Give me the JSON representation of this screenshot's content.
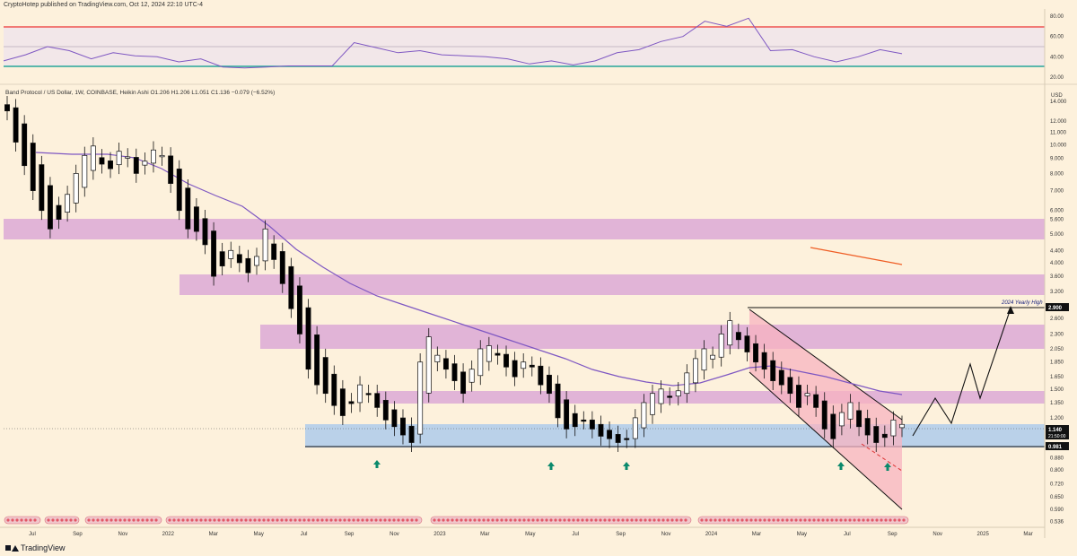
{
  "header": {
    "publish_line": "CryptoHotep published on TradingView.com, Oct 12, 2024 22:10 UTC-4",
    "symbol_line": "Band Protocol / US Dollar, 1W, COINBASE, Heikin Ashi  O1.206  H1.206  L1.051  C1.136  −0.079 (−6.52%)",
    "brand": "TradingView"
  },
  "colors": {
    "background": "#fdf1dc",
    "bull": "#ffffff",
    "bear": "#000000",
    "ma": "#7e57c2",
    "zone": "#d9a5d6",
    "support_zone": "#aecbeb",
    "channel_fill": "#f7b3c0",
    "arrow": "#0b8a6c",
    "rsi_upper": "#ef5350",
    "rsi_lower": "#26a69a",
    "rsi_line": "#7e57c2",
    "red_line": "#ef5d24"
  },
  "chart_data": [
    {
      "type": "line",
      "title": "",
      "pane": "RSI",
      "ylim": [
        20,
        80
      ],
      "yticks": [
        "80.00",
        "60.00",
        "40.00",
        "20.00"
      ],
      "levels": [
        70,
        50,
        30
      ],
      "x": [
        "2021-07",
        "2021-08",
        "2021-09",
        "2021-10",
        "2021-11",
        "2021-12",
        "2022-01",
        "2022-02",
        "2022-03",
        "2022-04",
        "2022-05",
        "2022-06",
        "2022-07",
        "2022-08",
        "2022-09",
        "2022-10",
        "2022-10-24",
        "2022-11",
        "2022-12",
        "2023-01",
        "2023-02",
        "2023-03",
        "2023-04",
        "2023-05",
        "2023-06",
        "2023-07",
        "2023-08",
        "2023-09",
        "2023-10",
        "2023-11",
        "2023-12",
        "2024-01",
        "2024-02",
        "2024-03",
        "2024-03-20",
        "2024-04",
        "2024-05",
        "2024-06",
        "2024-07",
        "2024-08",
        "2024-09",
        "2024-10"
      ],
      "values": [
        36,
        42,
        50,
        46,
        38,
        44,
        41,
        40,
        35,
        38,
        30,
        29,
        30,
        31,
        31,
        31,
        54,
        49,
        44,
        46,
        42,
        41,
        40,
        38,
        33,
        36,
        32,
        36,
        44,
        47,
        55,
        60,
        75,
        70,
        78,
        46,
        47,
        40,
        35,
        40,
        47,
        43
      ]
    },
    {
      "type": "candlestick",
      "title": "",
      "pane": "price",
      "scale": "log",
      "ylim": [
        0.52,
        14.5
      ],
      "yticks": [
        "14.000",
        "12.000",
        "11.000",
        "10.000",
        "9.000",
        "8.000",
        "7.000",
        "6.000",
        "5.600",
        "5.000",
        "4.400",
        "4.000",
        "3.600",
        "3.200",
        "2.900",
        "2.600",
        "2.300",
        "2.050",
        "1.850",
        "1.650",
        "1.500",
        "1.350",
        "1.200",
        "1.140",
        "0.981",
        "0.880",
        "0.800",
        "0.720",
        "0.650",
        "0.590",
        "0.536"
      ],
      "axis_unit": "USD",
      "xticks": [
        "Jul",
        "Sep",
        "Nov",
        "2022",
        "Mar",
        "May",
        "Jul",
        "Sep",
        "Nov",
        "2023",
        "Mar",
        "May",
        "Jul",
        "Sep",
        "Nov",
        "2024",
        "Mar",
        "May",
        "Jul",
        "Sep",
        "Nov",
        "2025",
        "Mar"
      ],
      "last_price": "1.140",
      "countdown": "21:50:00",
      "support_label": "0.981",
      "yearly_high_label": "2.900",
      "annotation": "2024 Yearly High",
      "candles_close": [
        13.0,
        10.2,
        8.5,
        7.0,
        6.0,
        5.2,
        5.6,
        6.8,
        8.0,
        9.2,
        9.9,
        8.6,
        8.3,
        9.5,
        9.1,
        8.0,
        8.8,
        9.6,
        9.2,
        7.4,
        6.0,
        5.2,
        5.1,
        4.6,
        3.6,
        3.9,
        4.4,
        4.0,
        3.7,
        4.2,
        5.2,
        4.1,
        3.4,
        2.8,
        2.3,
        1.75,
        1.55,
        1.45,
        1.32,
        1.22,
        1.34,
        1.55,
        1.45,
        1.3,
        1.18,
        1.12,
        1.05,
        0.99,
        1.85,
        2.25,
        1.95,
        1.75,
        1.6,
        1.45,
        1.75,
        2.05,
        2.1,
        1.95,
        1.78,
        1.65,
        1.85,
        1.78,
        1.55,
        1.45,
        1.2,
        1.1,
        1.12,
        1.18,
        1.1,
        1.04,
        1.02,
        0.99,
        1.02,
        1.2,
        1.35,
        1.45,
        1.5,
        1.42,
        1.48,
        1.7,
        1.9,
        2.05,
        1.95,
        2.3,
        2.55,
        2.2,
        2.0,
        1.85,
        1.75,
        1.6,
        1.55,
        1.45,
        1.3,
        1.45,
        1.3,
        1.1,
        1.02,
        1.25,
        1.35,
        1.12,
        1.05,
        0.99,
        1.03,
        1.18,
        1.14
      ]
    }
  ]
}
